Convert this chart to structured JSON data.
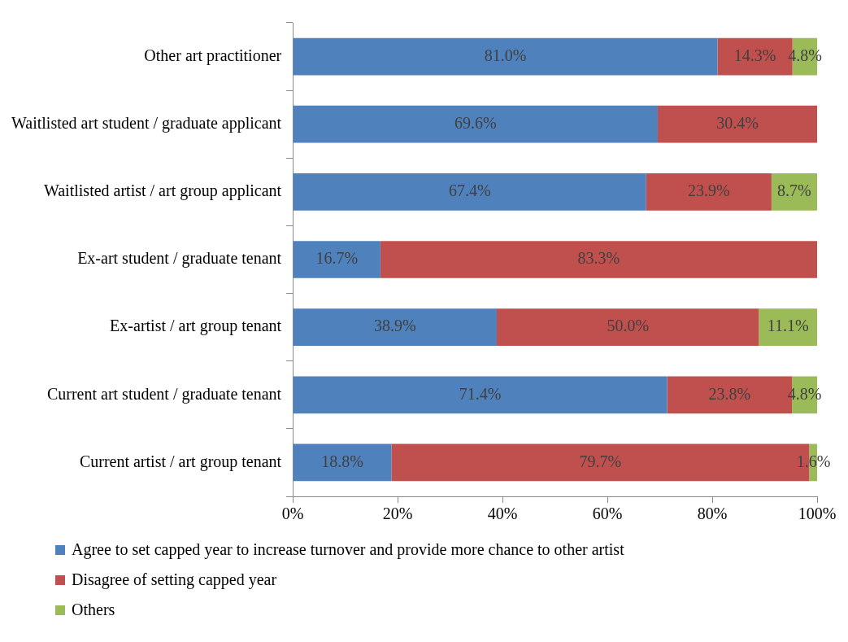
{
  "chart_data": {
    "type": "bar",
    "orientation": "horizontal",
    "stacked": true,
    "categories": [
      "Other art practitioner",
      "Waitlisted art student / graduate applicant",
      "Waitlisted artist / art group applicant",
      "Ex-art student / graduate tenant",
      "Ex-artist / art group tenant",
      "Current art student / graduate tenant",
      "Current artist / art group tenant"
    ],
    "series": [
      {
        "name": "Agree to set capped year to increase turnover and provide more chance to other artist",
        "color": "#4f81bd",
        "values": [
          81.0,
          69.6,
          67.4,
          16.7,
          38.9,
          71.4,
          18.8
        ],
        "value_labels": [
          "81.0%",
          "69.6%",
          "67.4%",
          "16.7%",
          "38.9%",
          "71.4%",
          "18.8%"
        ]
      },
      {
        "name": "Disagree of setting capped year",
        "color": "#c0504d",
        "values": [
          14.3,
          30.4,
          23.9,
          83.3,
          50.0,
          23.8,
          79.7
        ],
        "value_labels": [
          "14.3%",
          "30.4%",
          "23.9%",
          "83.3%",
          "50.0%",
          "23.8%",
          "79.7%"
        ]
      },
      {
        "name": "Others",
        "color": "#9bbb59",
        "values": [
          4.8,
          null,
          8.7,
          null,
          11.1,
          4.8,
          1.6
        ],
        "value_labels": [
          "4.8%",
          null,
          "8.7%",
          null,
          "11.1%",
          "4.8%",
          "1.6%"
        ]
      }
    ],
    "xlim": [
      0,
      100
    ],
    "xticks": [
      {
        "value": 0,
        "label": "0%"
      },
      {
        "value": 20,
        "label": "20%"
      },
      {
        "value": 40,
        "label": "40%"
      },
      {
        "value": 60,
        "label": "60%"
      },
      {
        "value": 80,
        "label": "80%"
      },
      {
        "value": 100,
        "label": "100%"
      }
    ],
    "grid": false,
    "legend": "bottom"
  }
}
